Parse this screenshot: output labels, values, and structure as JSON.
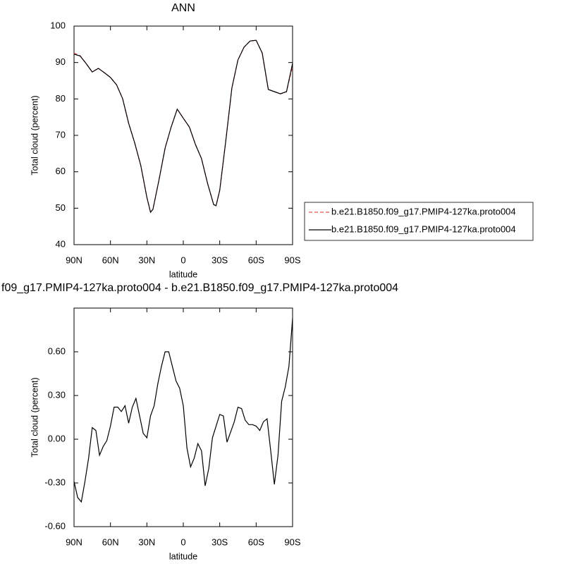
{
  "chart_data": [
    {
      "type": "line",
      "title": "ANN",
      "xlabel": "latitude",
      "ylabel": "Total cloud (percent)",
      "x": [
        90,
        85,
        80,
        75,
        70,
        65,
        60,
        55,
        50,
        45,
        40,
        35,
        30,
        27,
        25,
        20,
        15,
        10,
        5,
        0,
        -5,
        -10,
        -15,
        -20,
        -25,
        -27,
        -30,
        -35,
        -40,
        -45,
        -50,
        -55,
        -60,
        -65,
        -70,
        -75,
        -80,
        -85,
        -90
      ],
      "series": [
        {
          "name": "b.e21.B1850.f09_g17.PMIP4-127ka.proto004",
          "color": "#e05050",
          "line_style": "dashed",
          "values": [
            92.6,
            91.9,
            89.7,
            87.4,
            88.4,
            87.2,
            85.9,
            83.9,
            80.1,
            73.3,
            67.9,
            61.7,
            53.0,
            48.9,
            49.7,
            57.8,
            66.5,
            72.3,
            77.2,
            74.7,
            72.3,
            67.5,
            63.6,
            56.8,
            51.0,
            50.7,
            54.9,
            68.5,
            83.0,
            90.7,
            94.2,
            95.9,
            96.1,
            92.6,
            82.6,
            82.0,
            81.4,
            82.0,
            89.0
          ]
        },
        {
          "name": "b.e21.B1850.f09_g17.PMIP4-127ka.proto004",
          "color": "#000000",
          "line_style": "solid",
          "values": [
            92.3,
            91.8,
            89.7,
            87.4,
            88.4,
            87.2,
            85.9,
            83.9,
            80.1,
            73.3,
            67.9,
            61.7,
            53.0,
            48.9,
            49.7,
            57.8,
            66.5,
            72.3,
            77.2,
            74.7,
            72.3,
            67.5,
            63.6,
            56.8,
            51.0,
            50.7,
            54.9,
            68.5,
            83.0,
            90.7,
            94.2,
            95.9,
            96.1,
            92.6,
            82.6,
            82.0,
            81.4,
            82.0,
            89.8
          ]
        }
      ],
      "xlim": [
        90,
        -90
      ],
      "xticks": [
        {
          "value": 90,
          "label": "90N"
        },
        {
          "value": 60,
          "label": "60N"
        },
        {
          "value": 30,
          "label": "30N"
        },
        0,
        {
          "value": -30,
          "label": "30S"
        },
        {
          "value": -60,
          "label": "60S"
        },
        {
          "value": -90,
          "label": "90S"
        }
      ],
      "ylim": [
        40,
        100
      ],
      "yticks": [
        40,
        50,
        60,
        70,
        80,
        90,
        100
      ]
    },
    {
      "type": "line",
      "title": "f09_g17.PMIP4-127ka.proto004 - b.e21.B1850.f09_g17.PMIP4-127ka.proto004",
      "xlabel": "latitude",
      "ylabel": "Total cloud (percent)",
      "x": [
        90,
        87,
        84,
        81,
        78,
        75,
        72,
        69,
        66,
        63,
        60,
        57,
        54,
        51,
        48,
        45,
        42,
        39,
        36,
        33,
        30,
        27,
        24,
        21,
        18,
        15,
        12,
        9,
        6,
        3,
        0,
        -3,
        -6,
        -9,
        -12,
        -15,
        -18,
        -21,
        -24,
        -27,
        -30,
        -33,
        -36,
        -39,
        -42,
        -45,
        -48,
        -51,
        -54,
        -57,
        -60,
        -63,
        -66,
        -69,
        -72,
        -75,
        -78,
        -81,
        -84,
        -87,
        -90
      ],
      "values": [
        -0.29,
        -0.4,
        -0.43,
        -0.29,
        -0.13,
        0.08,
        0.06,
        -0.11,
        -0.05,
        -0.01,
        0.09,
        0.22,
        0.22,
        0.19,
        0.23,
        0.11,
        0.22,
        0.28,
        0.16,
        0.04,
        0.01,
        0.16,
        0.23,
        0.38,
        0.5,
        0.6,
        0.6,
        0.5,
        0.4,
        0.35,
        0.23,
        -0.06,
        -0.19,
        -0.13,
        -0.03,
        -0.08,
        -0.32,
        -0.2,
        0.01,
        0.09,
        0.17,
        0.16,
        -0.02,
        0.05,
        0.12,
        0.22,
        0.21,
        0.13,
        0.1,
        0.1,
        0.09,
        0.06,
        0.12,
        0.14,
        -0.08,
        -0.31,
        -0.11,
        0.26,
        0.36,
        0.5,
        0.83
      ],
      "color": "#000000",
      "xlim": [
        90,
        -90
      ],
      "xticks": [
        {
          "value": 90,
          "label": "90N"
        },
        {
          "value": 60,
          "label": "60N"
        },
        {
          "value": 30,
          "label": "30N"
        },
        0,
        {
          "value": -30,
          "label": "30S"
        },
        {
          "value": -60,
          "label": "60S"
        },
        {
          "value": -90,
          "label": "90S"
        }
      ],
      "ylim": [
        -0.6,
        0.9
      ],
      "yticks": [
        {
          "value": -0.6,
          "label": "-0.60"
        },
        {
          "value": -0.3,
          "label": "-0.30"
        },
        {
          "value": 0,
          "label": "0.00"
        },
        {
          "value": 0.3,
          "label": "0.30"
        },
        {
          "value": 0.6,
          "label": "0.60"
        }
      ]
    }
  ]
}
